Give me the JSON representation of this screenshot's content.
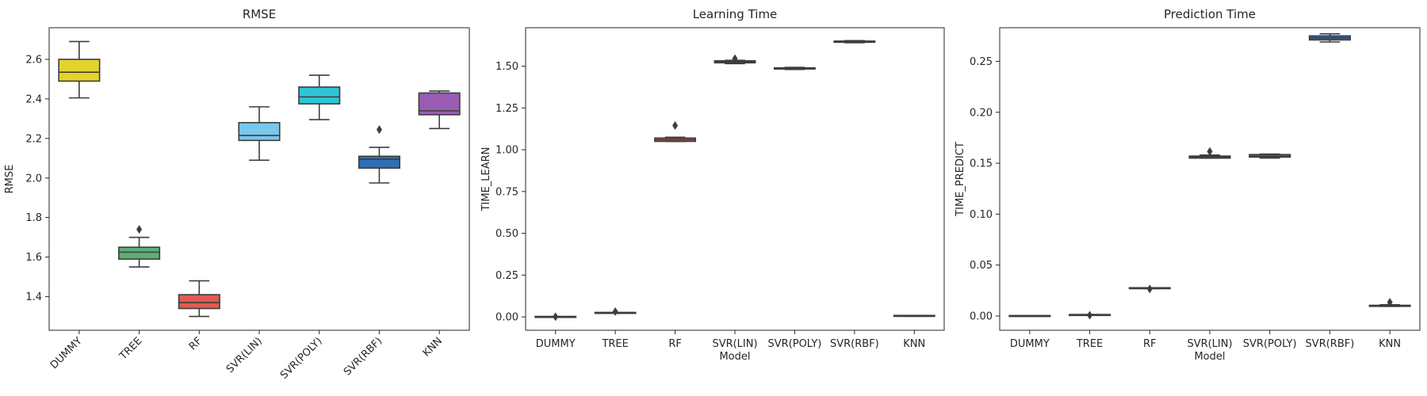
{
  "chart_data": [
    {
      "type": "box",
      "title": "RMSE",
      "xlabel": "",
      "ylabel": "RMSE",
      "ylim": [
        1.23,
        2.76
      ],
      "yticks": [
        1.4,
        1.6,
        1.8,
        2.0,
        2.2,
        2.4,
        2.6
      ],
      "ytick_labels": [
        "1.4",
        "1.6",
        "1.8",
        "2.0",
        "2.2",
        "2.4",
        "2.6"
      ],
      "rotate_xticks": true,
      "categories": [
        "DUMMY",
        "TREE",
        "RF",
        "SVR(LIN)",
        "SVR(POLY)",
        "SVR(RBF)",
        "KNN"
      ],
      "colors": [
        "#e3d42b",
        "#5bb076",
        "#e05a52",
        "#78c8eb",
        "#2ec5d6",
        "#2f6fb3",
        "#9a5bb5"
      ],
      "boxes": [
        {
          "whislo": 2.405,
          "q1": 2.49,
          "med": 2.535,
          "q3": 2.6,
          "whishi": 2.69,
          "fliers": []
        },
        {
          "whislo": 1.55,
          "q1": 1.59,
          "med": 1.625,
          "q3": 1.65,
          "whishi": 1.7,
          "fliers": [
            1.74
          ]
        },
        {
          "whislo": 1.3,
          "q1": 1.34,
          "med": 1.37,
          "q3": 1.41,
          "whishi": 1.48,
          "fliers": []
        },
        {
          "whislo": 2.09,
          "q1": 2.19,
          "med": 2.215,
          "q3": 2.28,
          "whishi": 2.36,
          "fliers": []
        },
        {
          "whislo": 2.295,
          "q1": 2.375,
          "med": 2.41,
          "q3": 2.46,
          "whishi": 2.52,
          "fliers": []
        },
        {
          "whislo": 1.975,
          "q1": 2.05,
          "med": 2.095,
          "q3": 2.11,
          "whishi": 2.155,
          "fliers": [
            2.245
          ]
        },
        {
          "whislo": 2.25,
          "q1": 2.32,
          "med": 2.34,
          "q3": 2.43,
          "whishi": 2.44,
          "fliers": []
        }
      ]
    },
    {
      "type": "box",
      "title": "Learning Time",
      "xlabel": "Model",
      "ylabel": "TIME_LEARN",
      "ylim": [
        -0.08,
        1.73
      ],
      "yticks": [
        0.0,
        0.25,
        0.5,
        0.75,
        1.0,
        1.25,
        1.5
      ],
      "ytick_labels": [
        "0.00",
        "0.25",
        "0.50",
        "0.75",
        "1.00",
        "1.25",
        "1.50"
      ],
      "rotate_xticks": false,
      "categories": [
        "DUMMY",
        "TREE",
        "RF",
        "SVR(LIN)",
        "SVR(POLY)",
        "SVR(RBF)",
        "KNN"
      ],
      "colors": [
        "#e3d42b",
        "#5bb076",
        "#e05a52",
        "#78c8eb",
        "#2ec5d6",
        "#2f6fb3",
        "#9a5bb5"
      ],
      "boxes": [
        {
          "whislo": 0.0,
          "q1": 0.0,
          "med": 0.0,
          "q3": 0.0,
          "whishi": 0.0,
          "fliers": [
            0.001
          ]
        },
        {
          "whislo": 0.022,
          "q1": 0.023,
          "med": 0.024,
          "q3": 0.025,
          "whishi": 0.026,
          "fliers": [
            0.032
          ]
        },
        {
          "whislo": 1.05,
          "q1": 1.05,
          "med": 1.06,
          "q3": 1.07,
          "whishi": 1.075,
          "fliers": [
            1.145
          ]
        },
        {
          "whislo": 1.515,
          "q1": 1.52,
          "med": 1.525,
          "q3": 1.532,
          "whishi": 1.535,
          "fliers": [
            1.545
          ]
        },
        {
          "whislo": 1.48,
          "q1": 1.483,
          "med": 1.487,
          "q3": 1.49,
          "whishi": 1.493,
          "fliers": []
        },
        {
          "whislo": 1.64,
          "q1": 1.643,
          "med": 1.647,
          "q3": 1.65,
          "whishi": 1.653,
          "fliers": []
        },
        {
          "whislo": 0.004,
          "q1": 0.005,
          "med": 0.006,
          "q3": 0.007,
          "whishi": 0.008,
          "fliers": []
        }
      ]
    },
    {
      "type": "box",
      "title": "Prediction Time",
      "xlabel": "Model",
      "ylabel": "TIME_PREDICT",
      "ylim": [
        -0.014,
        0.283
      ],
      "yticks": [
        0.0,
        0.05,
        0.1,
        0.15,
        0.2,
        0.25
      ],
      "ytick_labels": [
        "0.00",
        "0.05",
        "0.10",
        "0.15",
        "0.20",
        "0.25"
      ],
      "rotate_xticks": false,
      "categories": [
        "DUMMY",
        "TREE",
        "RF",
        "SVR(LIN)",
        "SVR(POLY)",
        "SVR(RBF)",
        "KNN"
      ],
      "colors": [
        "#e3d42b",
        "#5bb076",
        "#e05a52",
        "#78c8eb",
        "#2ec5d6",
        "#2f6fb3",
        "#9a5bb5"
      ],
      "boxes": [
        {
          "whislo": 0.0,
          "q1": 0.0,
          "med": 0.0,
          "q3": 0.0,
          "whishi": 0.0,
          "fliers": []
        },
        {
          "whislo": 0.0006,
          "q1": 0.0008,
          "med": 0.001,
          "q3": 0.0012,
          "whishi": 0.0014,
          "fliers": [
            0.0008
          ]
        },
        {
          "whislo": 0.027,
          "q1": 0.027,
          "med": 0.0273,
          "q3": 0.0276,
          "whishi": 0.0276,
          "fliers": [
            0.0265
          ]
        },
        {
          "whislo": 0.155,
          "q1": 0.155,
          "med": 0.156,
          "q3": 0.157,
          "whishi": 0.158,
          "fliers": [
            0.1615
          ]
        },
        {
          "whislo": 0.155,
          "q1": 0.156,
          "med": 0.157,
          "q3": 0.1585,
          "whishi": 0.159,
          "fliers": []
        },
        {
          "whislo": 0.269,
          "q1": 0.271,
          "med": 0.273,
          "q3": 0.275,
          "whishi": 0.277,
          "fliers": []
        },
        {
          "whislo": 0.0095,
          "q1": 0.0095,
          "med": 0.01,
          "q3": 0.0105,
          "whishi": 0.011,
          "fliers": [
            0.0135
          ]
        }
      ]
    }
  ]
}
